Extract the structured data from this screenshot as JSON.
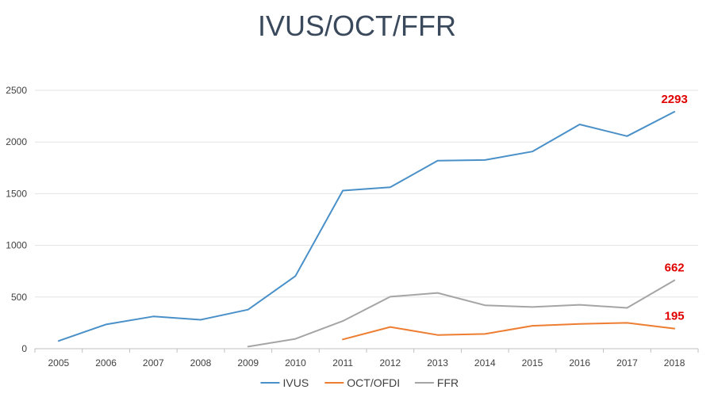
{
  "chart_data": {
    "type": "line",
    "title": "IVUS/OCT/FFR",
    "categories": [
      "2005",
      "2006",
      "2007",
      "2008",
      "2009",
      "2010",
      "2011",
      "2012",
      "2013",
      "2014",
      "2015",
      "2016",
      "2017",
      "2018"
    ],
    "yticks": [
      "0",
      "500",
      "1000",
      "1500",
      "2000",
      "2500"
    ],
    "ylim": [
      0,
      2500
    ],
    "grid": true,
    "legend_position": "bottom",
    "label_color": "#e00000",
    "series": [
      {
        "name": "IVUS",
        "color": "#4a90c8",
        "values": [
          75,
          235,
          312,
          280,
          378,
          703,
          1530,
          1562,
          1820,
          1826,
          1908,
          2170,
          2057,
          2293
        ],
        "end_label": "2293"
      },
      {
        "name": "OCT/OFDI",
        "color": "#ed7d31",
        "values": [
          null,
          null,
          null,
          null,
          null,
          null,
          90,
          210,
          133,
          143,
          222,
          240,
          250,
          195
        ],
        "end_label": "195"
      },
      {
        "name": "FFR",
        "color": "#a5a5a5",
        "values": [
          null,
          null,
          null,
          null,
          20,
          95,
          268,
          503,
          540,
          420,
          403,
          425,
          395,
          662
        ],
        "end_label": "662"
      }
    ]
  }
}
